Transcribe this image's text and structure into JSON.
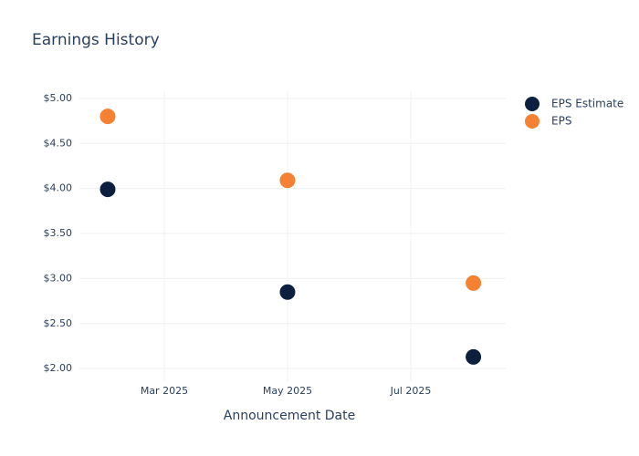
{
  "chart_data": {
    "type": "scatter",
    "title": "Earnings History",
    "x_label": "Announcement Date",
    "x": [
      "2025-02",
      "2025-05",
      "2025-08"
    ],
    "series": [
      {
        "name": "EPS Estimate",
        "color": "#0d1f3f",
        "values": [
          3.99,
          2.85,
          2.13
        ]
      },
      {
        "name": "EPS",
        "color": "#f58133",
        "values": [
          4.8,
          4.09,
          2.95
        ]
      }
    ],
    "xlim": [
      "2025-01-18",
      "2025-08-17"
    ],
    "xticks": [
      {
        "value": "2025-03",
        "label": "Mar 2025"
      },
      {
        "value": "2025-05",
        "label": "May 2025"
      },
      {
        "value": "2025-07",
        "label": "Jul 2025"
      }
    ],
    "ylim": [
      1.86,
      5.08
    ],
    "yticks": [
      {
        "value": 2,
        "label": "$2.00"
      },
      {
        "value": 2.5,
        "label": "$2.50"
      },
      {
        "value": 3,
        "label": "$3.00"
      },
      {
        "value": 3.5,
        "label": "$3.50"
      },
      {
        "value": 4,
        "label": "$4.00"
      },
      {
        "value": 4.5,
        "label": "$4.50"
      },
      {
        "value": 5,
        "label": "$5.00"
      }
    ],
    "grid": true,
    "legend": "top-right"
  }
}
